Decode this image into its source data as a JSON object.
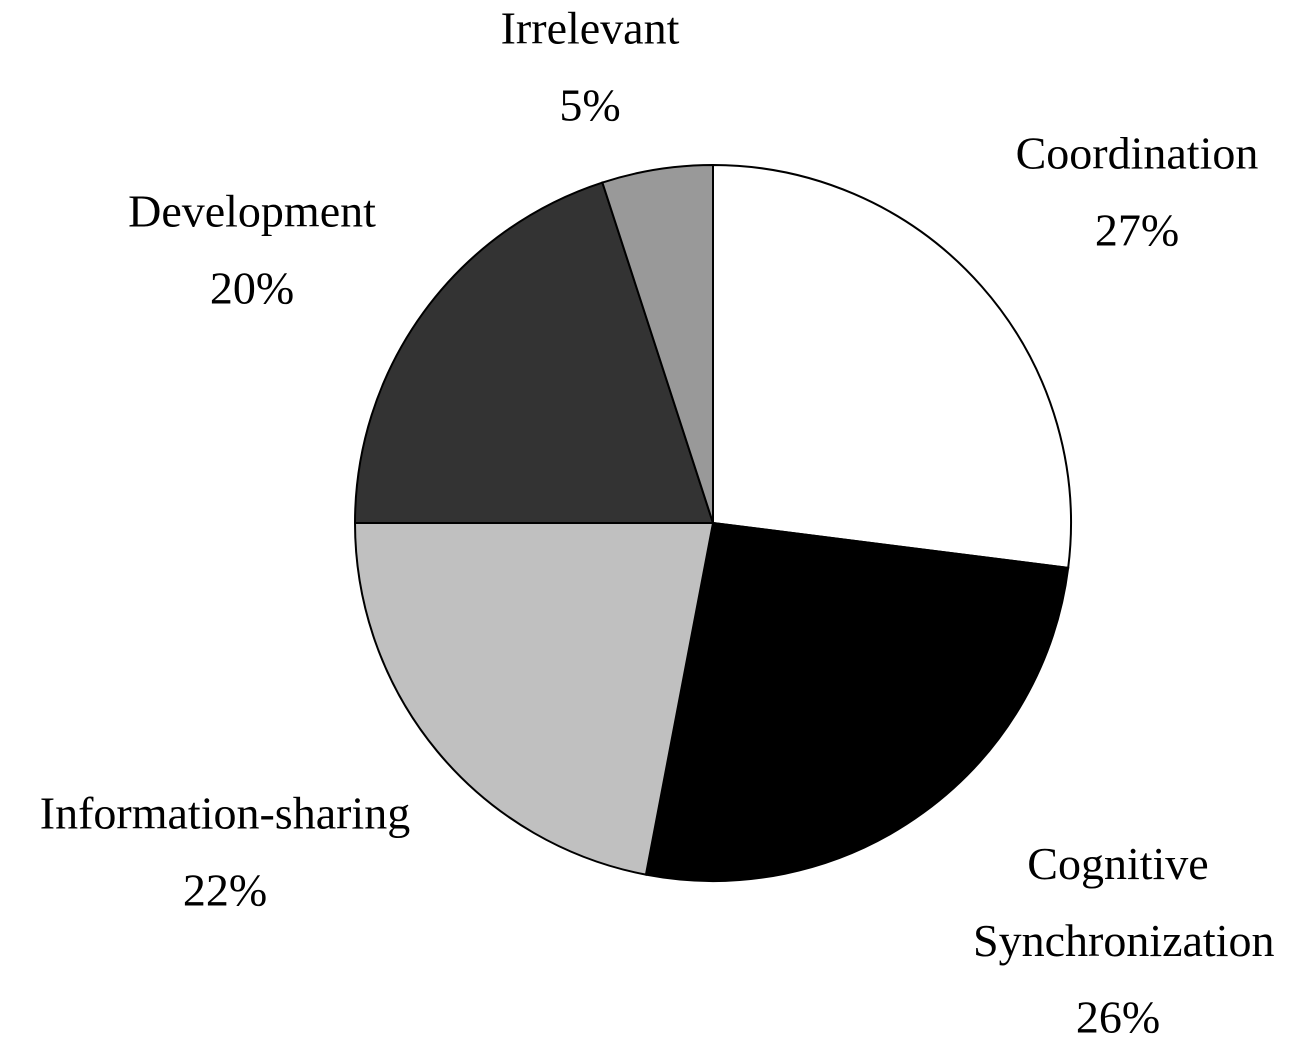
{
  "chart_data": {
    "type": "pie",
    "categories": [
      "Coordination",
      "Cognitive Synchronization",
      "Information-sharing",
      "Development",
      "Irrelevant"
    ],
    "values": [
      27,
      26,
      22,
      20,
      5
    ],
    "value_labels": [
      "27%",
      "26%",
      "22%",
      "20%",
      "5%"
    ],
    "colors": [
      "#ffffff",
      "#000000",
      "#c0c0c0",
      "#333333",
      "#999999"
    ]
  }
}
